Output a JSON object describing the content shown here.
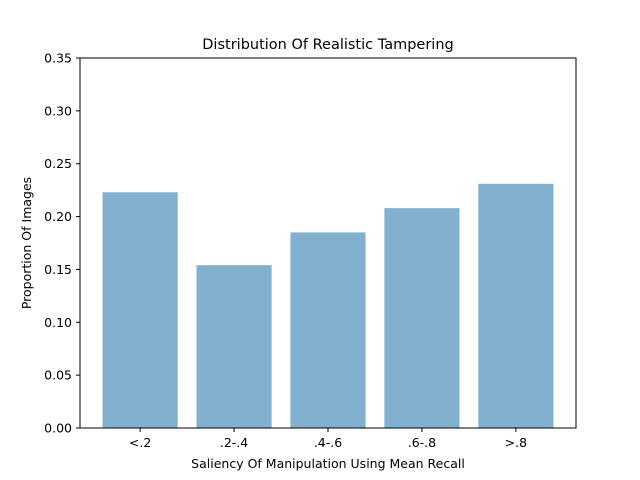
{
  "chart_data": {
    "type": "bar",
    "title": "Distribution Of Realistic Tampering",
    "xlabel": "Saliency Of Manipulation Using Mean Recall",
    "ylabel": "Proportion Of Images",
    "categories": [
      "<.2",
      ".2-.4",
      ".4-.6",
      ".6-.8",
      ">.8"
    ],
    "values": [
      0.223,
      0.154,
      0.185,
      0.208,
      0.231
    ],
    "ylim": [
      0,
      0.35
    ],
    "yticks": [
      "0.00",
      "0.05",
      "0.10",
      "0.15",
      "0.20",
      "0.25",
      "0.30",
      "0.35"
    ],
    "bar_color": "#82b1d0",
    "grid": false,
    "legend": "none"
  }
}
